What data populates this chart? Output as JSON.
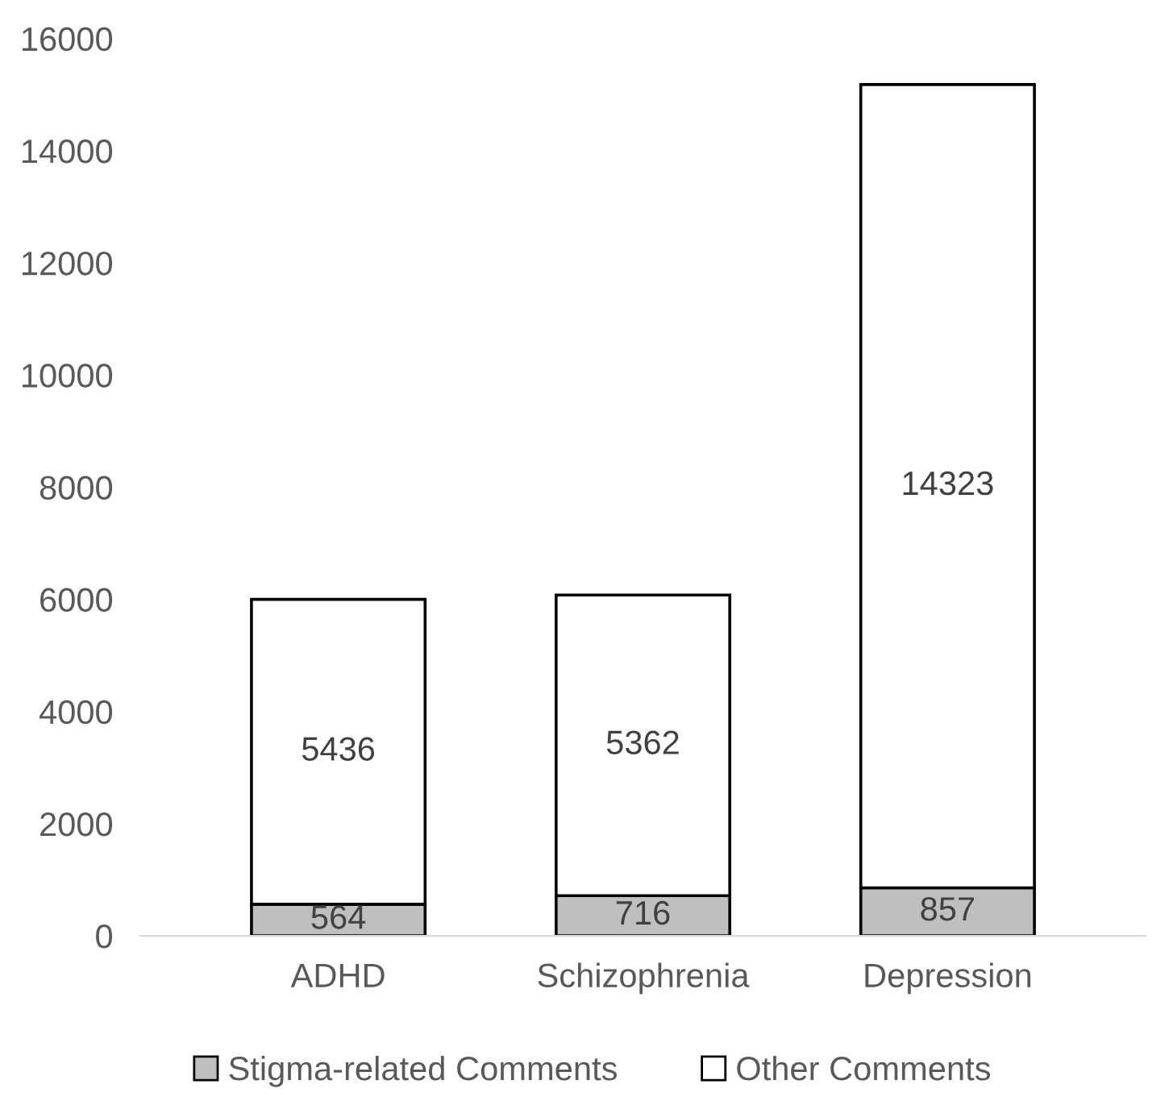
{
  "chart_data": {
    "type": "bar",
    "stacked": true,
    "categories": [
      "ADHD",
      "Schizophrenia",
      "Depression"
    ],
    "series": [
      {
        "name": "Stigma-related Comments",
        "color": "#bfbfbf",
        "values": [
          564,
          716,
          857
        ]
      },
      {
        "name": "Other Comments",
        "color": "#ffffff",
        "values": [
          5436,
          5362,
          14323
        ]
      }
    ],
    "ylim": [
      0,
      16000
    ],
    "yticks": [
      0,
      2000,
      4000,
      6000,
      8000,
      10000,
      12000,
      14000,
      16000
    ],
    "data_labels": true,
    "grid": false,
    "legend": "bottom"
  }
}
